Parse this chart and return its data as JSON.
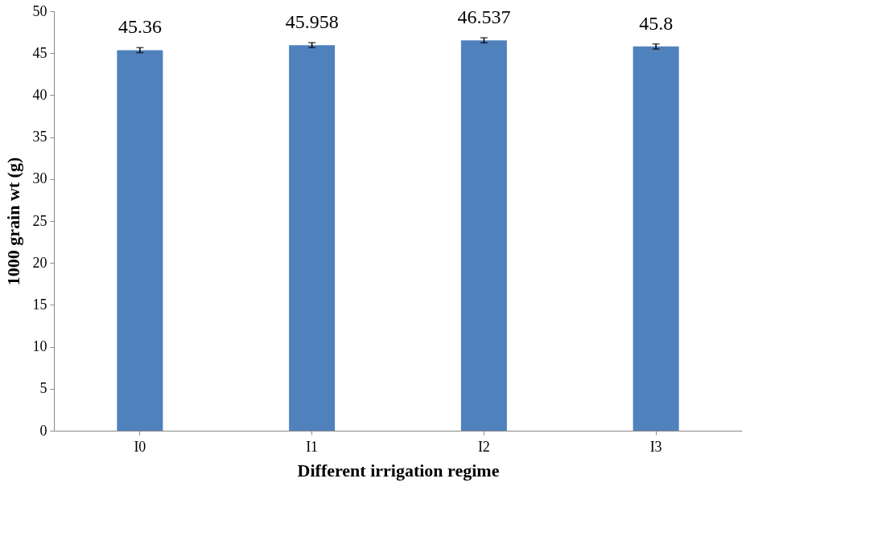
{
  "chart_data": {
    "type": "bar",
    "xlabel": "Different irrigation regime",
    "ylabel": "1000 grain wt (g)",
    "categories": [
      "I0",
      "I1",
      "I2",
      "I3"
    ],
    "values": [
      45.36,
      45.958,
      46.537,
      45.8
    ],
    "errors": [
      0.3,
      0.3,
      0.3,
      0.3
    ],
    "color": "#4f81bd",
    "ylim": [
      0,
      50
    ],
    "yticks": [
      0,
      5,
      10,
      15,
      20,
      25,
      30,
      35,
      40,
      45,
      50
    ],
    "grid": false,
    "data_labels": true
  }
}
